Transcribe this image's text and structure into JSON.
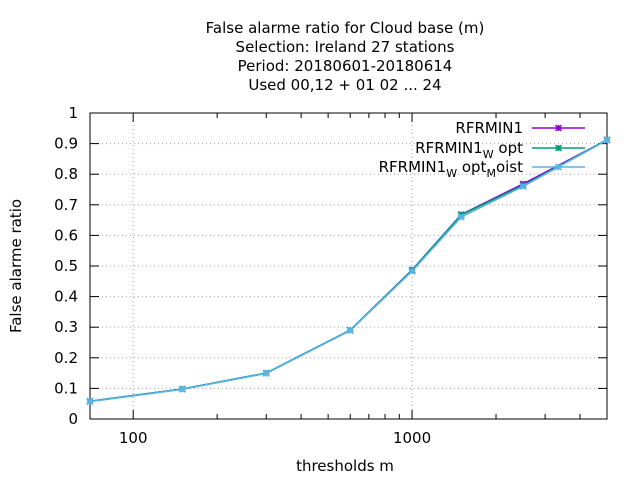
{
  "chart_data": {
    "type": "line",
    "title": [
      "False alarme ratio  for Cloud base (m)",
      "Selection: Ireland     27 stations",
      "Period: 20180601-20180614",
      "Used  00,12  + 01 02 ... 24"
    ],
    "xlabel": "thresholds m",
    "ylabel": "False alarme ratio",
    "xscale": "log",
    "xlim": [
      70,
      5000
    ],
    "ylim": [
      0,
      1
    ],
    "xticks": [
      {
        "value": 100,
        "label": "100"
      },
      {
        "value": 1000,
        "label": "1000"
      }
    ],
    "xminor": [
      200,
      300,
      400,
      500,
      600,
      700,
      800,
      900,
      2000,
      3000,
      4000,
      5000
    ],
    "yticks": [
      {
        "value": 0,
        "label": "0"
      },
      {
        "value": 0.1,
        "label": "0.1"
      },
      {
        "value": 0.2,
        "label": "0.2"
      },
      {
        "value": 0.3,
        "label": "0.3"
      },
      {
        "value": 0.4,
        "label": "0.4"
      },
      {
        "value": 0.5,
        "label": "0.5"
      },
      {
        "value": 0.6,
        "label": "0.6"
      },
      {
        "value": 0.7,
        "label": "0.7"
      },
      {
        "value": 0.8,
        "label": "0.8"
      },
      {
        "value": 0.9,
        "label": "0.9"
      },
      {
        "value": 1,
        "label": "1"
      }
    ],
    "grid": true,
    "legend_position": "top-right",
    "x": [
      70,
      150,
      300,
      600,
      1000,
      1500,
      2500,
      5000
    ],
    "series": [
      {
        "name": "RFRMIN1",
        "legend": {
          "main": "RFRMIN1",
          "parts": []
        },
        "color": "#9400d3",
        "values": [
          0.058,
          0.098,
          0.15,
          0.29,
          0.487,
          0.668,
          0.768,
          0.912
        ]
      },
      {
        "name": "RFRMIN1_W opt",
        "legend": {
          "main": "RFRMIN1",
          "parts": [
            {
              "sub": "W",
              "text": " opt"
            }
          ]
        },
        "color": "#009e73",
        "values": [
          0.058,
          0.098,
          0.15,
          0.29,
          0.486,
          0.667,
          0.763,
          0.912
        ]
      },
      {
        "name": "RFRMIN1_W opt_M oist",
        "legend": {
          "main": "RFRMIN1",
          "parts": [
            {
              "sub": "W",
              "text": " opt"
            },
            {
              "sub": "M",
              "text": "oist"
            }
          ]
        },
        "color": "#56b4e9",
        "values": [
          0.057,
          0.097,
          0.149,
          0.289,
          0.483,
          0.66,
          0.76,
          0.911
        ]
      }
    ]
  }
}
